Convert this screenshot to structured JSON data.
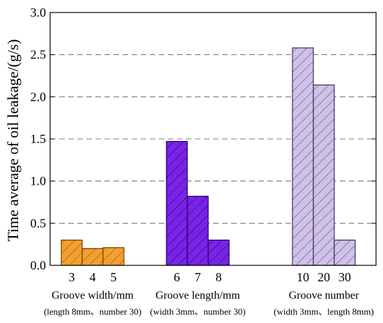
{
  "chart_data": {
    "type": "bar",
    "ylabel": "Time average of oil leakage/(g/s)",
    "ylim": [
      0,
      3.0
    ],
    "yticks": [
      "0.0",
      "0.5",
      "1.0",
      "1.5",
      "2.0",
      "2.5",
      "3.0"
    ],
    "grid": "dashed horizontal",
    "groups": [
      {
        "name": "Groove width/mm",
        "note": "(length 8mm、number 30)",
        "categories": [
          "3",
          "4",
          "5"
        ],
        "values": [
          0.3,
          0.2,
          0.21
        ],
        "fill": "#f0a030",
        "hatch": "#b05a00",
        "edge": "#7a3e00"
      },
      {
        "name": "Groove length/mm",
        "note": "(width 3mm、number 30)",
        "categories": [
          "6",
          "7",
          "8"
        ],
        "values": [
          1.47,
          0.82,
          0.3
        ],
        "fill": "#7a22e6",
        "hatch": "#2a0a80",
        "edge": "#1a0060"
      },
      {
        "name": "Groove number",
        "note": "(width 3mm、length 8mm)",
        "categories": [
          "10",
          "20",
          "30"
        ],
        "values": [
          2.58,
          2.14,
          0.3
        ],
        "fill": "#cfc2e6",
        "hatch": "#6a5a90",
        "edge": "#3a2a60"
      }
    ]
  }
}
